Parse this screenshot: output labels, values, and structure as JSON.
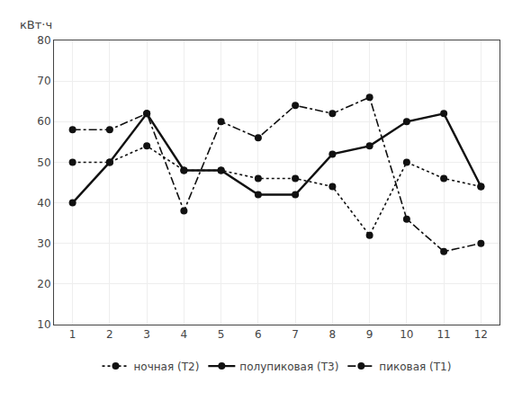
{
  "chart_data": {
    "type": "line",
    "ylabel": "кВт·ч",
    "x": [
      1,
      2,
      3,
      4,
      5,
      6,
      7,
      8,
      9,
      10,
      11,
      12
    ],
    "series": [
      {
        "name": "ночная (Т2)",
        "color": "#111111",
        "line_style": "dotted",
        "marker": "circle",
        "values": [
          50,
          50,
          54,
          48,
          48,
          46,
          46,
          44,
          32,
          50,
          46,
          44
        ]
      },
      {
        "name": "полупиковая (Т3)",
        "color": "#111111",
        "line_style": "solid",
        "marker": "circle",
        "values": [
          40,
          50,
          62,
          48,
          48,
          42,
          42,
          52,
          54,
          60,
          62,
          44
        ]
      },
      {
        "name": "пиковая (Т1)",
        "color": "#111111",
        "line_style": "dashdot",
        "marker": "circle",
        "values": [
          58,
          58,
          62,
          38,
          60,
          56,
          64,
          62,
          66,
          36,
          28,
          30
        ]
      }
    ],
    "xlim": [
      0.5,
      12.5
    ],
    "xticks": [
      1,
      2,
      3,
      4,
      5,
      6,
      7,
      8,
      9,
      10,
      11,
      12
    ],
    "ylim": [
      10,
      80
    ],
    "yticks": [
      10,
      20,
      30,
      40,
      50,
      60,
      70,
      80
    ],
    "grid": true,
    "legend": "bottom"
  }
}
